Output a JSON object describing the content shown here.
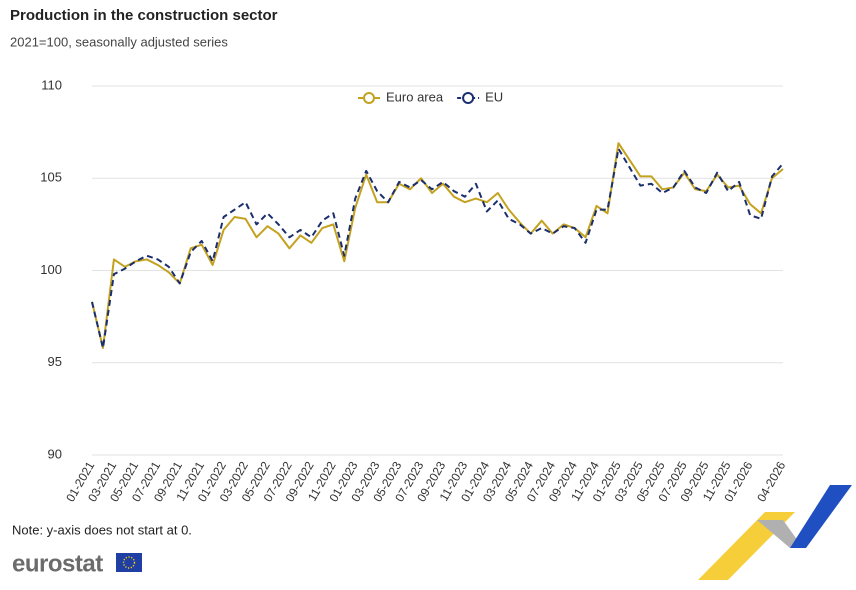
{
  "chart_data": {
    "type": "line",
    "title": "Production in the construction sector",
    "subtitle": "2021=100, seasonally adjusted series",
    "note": "Note: y-axis does not start at 0.",
    "logo": "eurostat",
    "categories": [
      "01-2021",
      null,
      "03-2021",
      null,
      "05-2021",
      null,
      "07-2021",
      null,
      "09-2021",
      null,
      "11-2021",
      null,
      "01-2022",
      null,
      "03-2022",
      null,
      "05-2022",
      null,
      "07-2022",
      null,
      "09-2022",
      null,
      "11-2022",
      null,
      "01-2023",
      null,
      "03-2023",
      null,
      "05-2023",
      null,
      "07-2023",
      null,
      "09-2023",
      null,
      "11-2023",
      null,
      "01-2024",
      null,
      "03-2024",
      null,
      "05-2024",
      null,
      "07-2024",
      null,
      "09-2024",
      null,
      "11-2024",
      null,
      "01-2025",
      null,
      "03-2025",
      null,
      "05-2025",
      null,
      "07-2025",
      null,
      "09-2025",
      null,
      "11-2025",
      null,
      "01-2026",
      null,
      null,
      "04-2026"
    ],
    "series": [
      {
        "name": "Euro area",
        "color": "#c4a21f",
        "dashed": false,
        "values": [
          98.3,
          95.8,
          100.6,
          100.2,
          100.5,
          100.6,
          100.3,
          99.9,
          99.3,
          101.2,
          101.4,
          100.3,
          102.2,
          102.9,
          102.8,
          101.8,
          102.4,
          102.0,
          101.2,
          101.9,
          101.5,
          102.3,
          102.5,
          100.5,
          103.4,
          105.2,
          103.7,
          103.7,
          104.7,
          104.4,
          105.0,
          104.2,
          104.7,
          104.0,
          103.7,
          103.9,
          103.7,
          104.2,
          103.3,
          102.6,
          102.0,
          102.7,
          102.0,
          102.5,
          102.3,
          101.8,
          103.5,
          103.1,
          106.9,
          106.0,
          105.1,
          105.1,
          104.4,
          104.5,
          105.3,
          104.4,
          104.3,
          105.2,
          104.5,
          104.6,
          103.6,
          103.1,
          105.0,
          105.5
        ]
      },
      {
        "name": "EU",
        "color": "#1b2f6e",
        "dashed": true,
        "values": [
          98.3,
          95.8,
          99.8,
          100.1,
          100.5,
          100.8,
          100.6,
          100.2,
          99.3,
          101.0,
          101.6,
          100.5,
          102.9,
          103.3,
          103.7,
          102.5,
          103.1,
          102.5,
          101.8,
          102.2,
          101.8,
          102.7,
          103.1,
          100.8,
          103.9,
          105.4,
          104.3,
          103.7,
          104.8,
          104.5,
          104.9,
          104.4,
          104.8,
          104.3,
          104.0,
          104.7,
          103.2,
          103.8,
          102.8,
          102.5,
          102.0,
          102.3,
          102.0,
          102.4,
          102.3,
          101.5,
          103.3,
          103.3,
          106.6,
          105.6,
          104.6,
          104.7,
          104.2,
          104.5,
          105.4,
          104.5,
          104.2,
          105.3,
          104.3,
          104.8,
          103.0,
          102.8,
          105.1,
          105.8
        ]
      }
    ],
    "ylim": [
      90,
      110
    ],
    "yticks": [
      90,
      95,
      100,
      105,
      110
    ],
    "grid": true,
    "legend": "top"
  }
}
